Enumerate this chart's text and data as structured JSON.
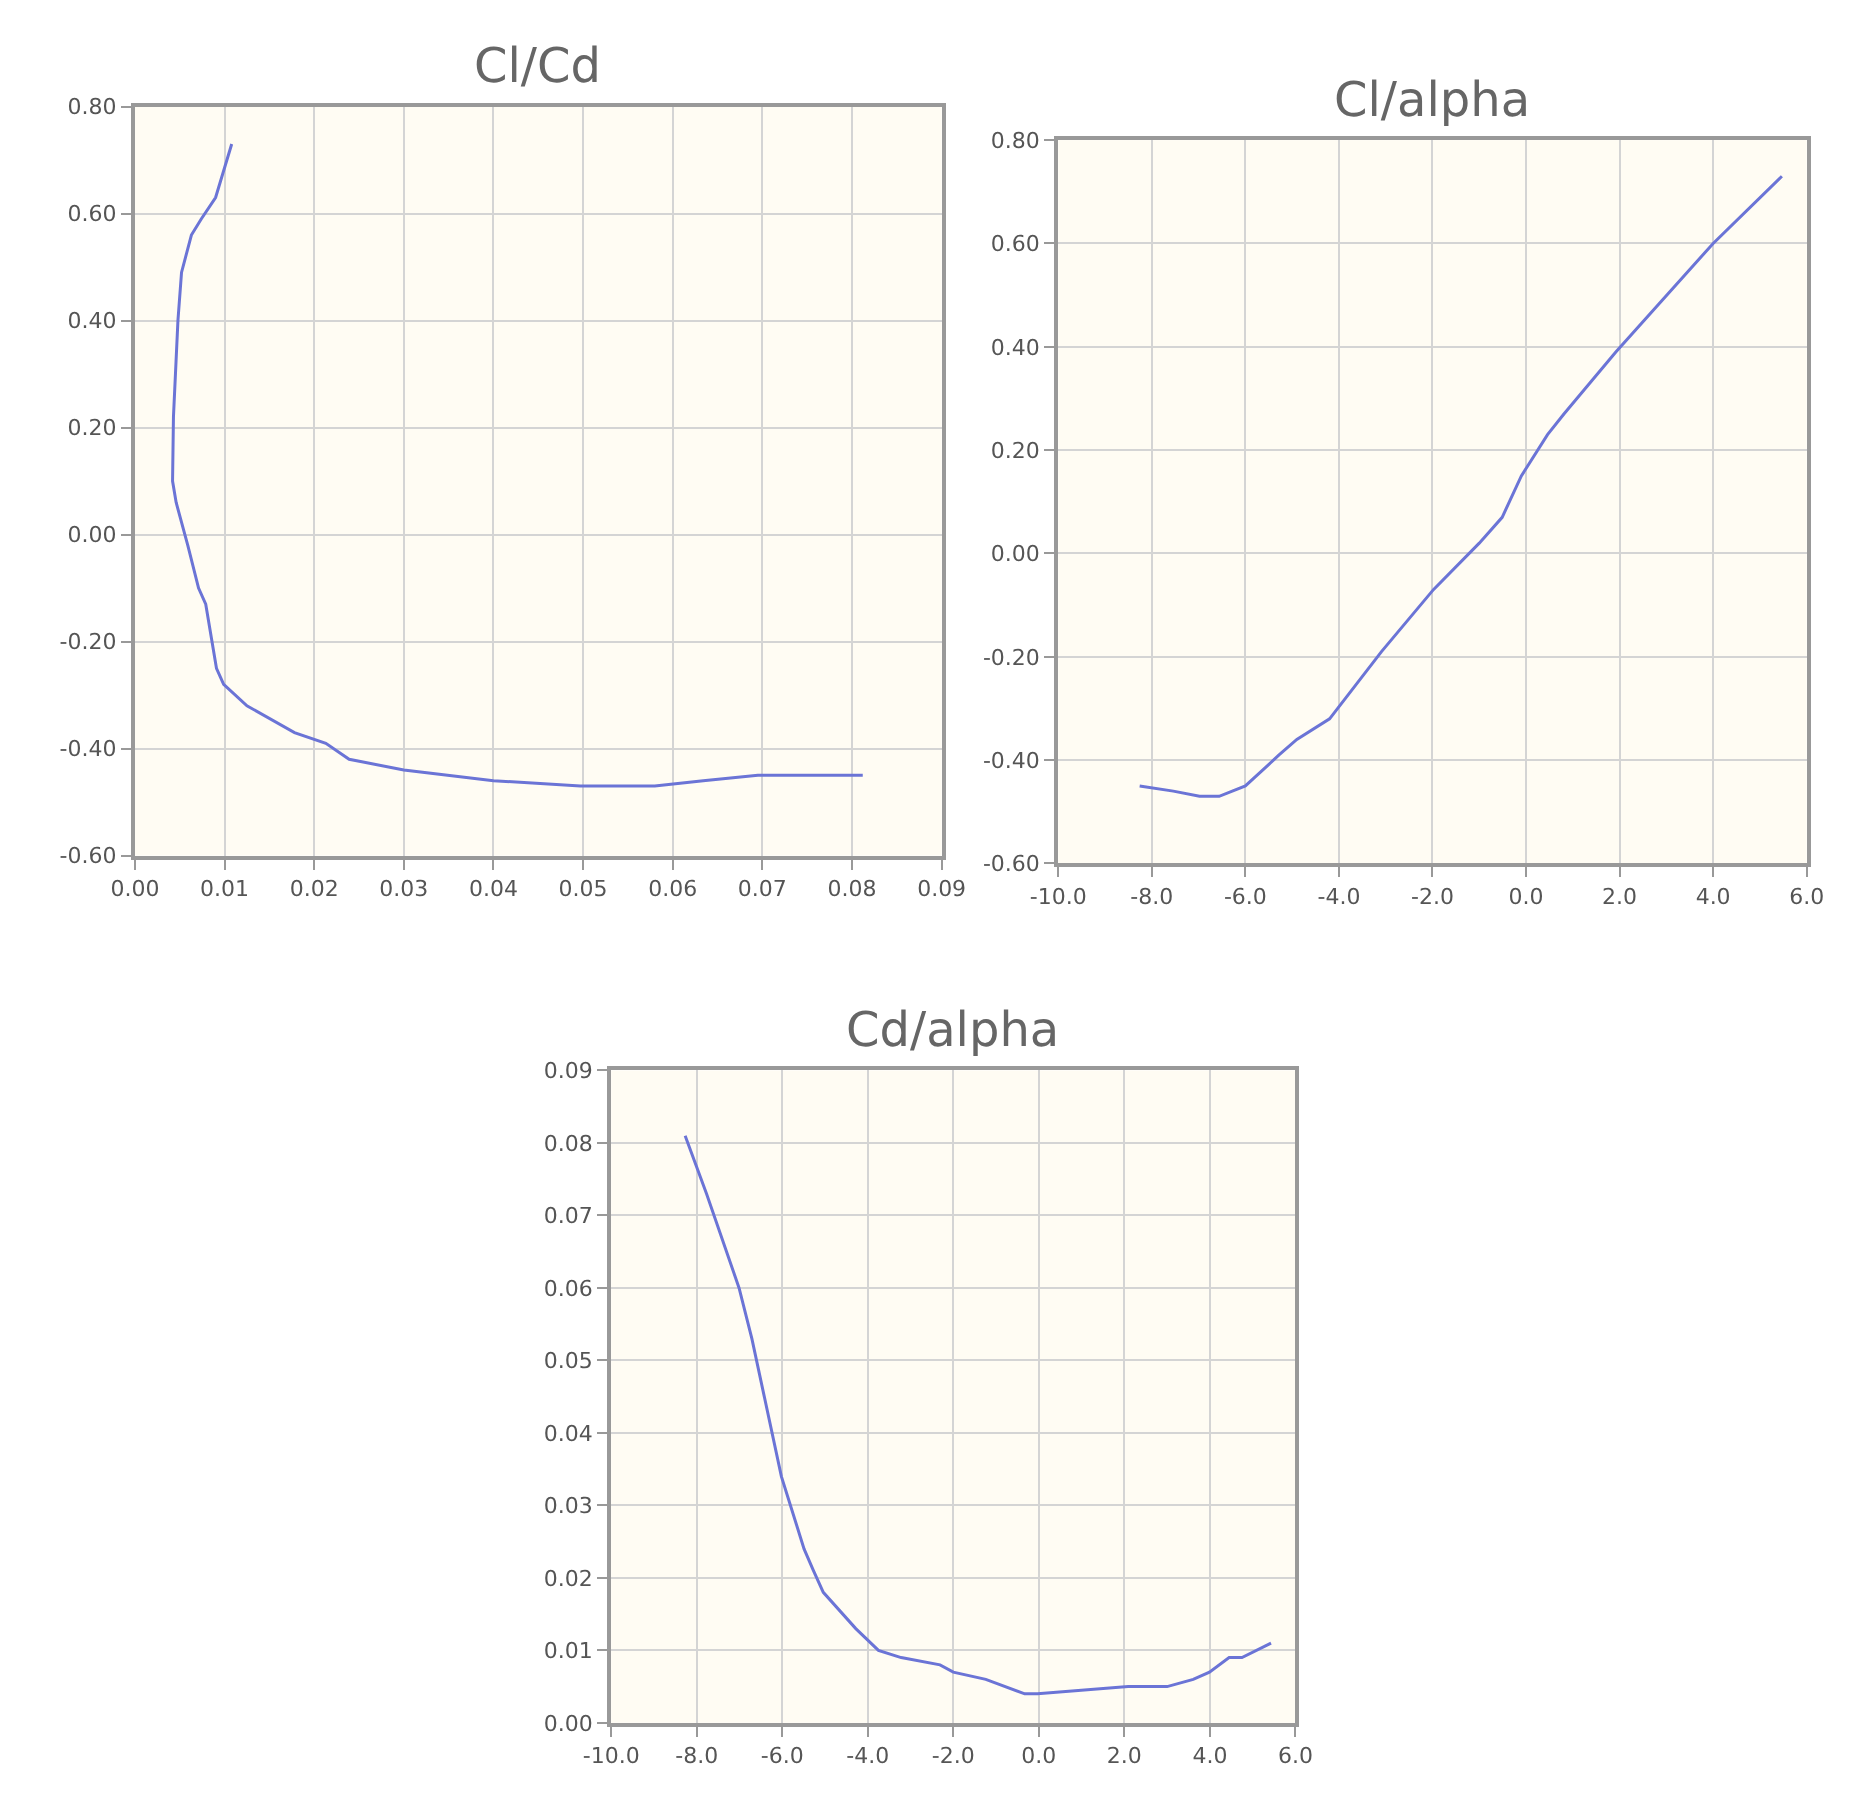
{
  "chart_data": [
    {
      "type": "line",
      "title": "Cl/Cd",
      "grid": true,
      "xlim": [
        0,
        0.09
      ],
      "ylim": [
        -0.6,
        0.8
      ],
      "xticks": [
        {
          "value": 0,
          "label": "0.00"
        },
        {
          "value": 0.01,
          "label": "0.01"
        },
        {
          "value": 0.02,
          "label": "0.02"
        },
        {
          "value": 0.03,
          "label": "0.03"
        },
        {
          "value": 0.04,
          "label": "0.04"
        },
        {
          "value": 0.05,
          "label": "0.05"
        },
        {
          "value": 0.06,
          "label": "0.06"
        },
        {
          "value": 0.07,
          "label": "0.07"
        },
        {
          "value": 0.08,
          "label": "0.08"
        },
        {
          "value": 0.09,
          "label": "0.09"
        }
      ],
      "yticks": [
        {
          "value": -0.6,
          "label": "-0.60"
        },
        {
          "value": -0.4,
          "label": "-0.40"
        },
        {
          "value": -0.2,
          "label": "-0.20"
        },
        {
          "value": 0,
          "label": "0.00"
        },
        {
          "value": 0.2,
          "label": "0.20"
        },
        {
          "value": 0.4,
          "label": "0.40"
        },
        {
          "value": 0.6,
          "label": "0.60"
        },
        {
          "value": 0.8,
          "label": "0.80"
        }
      ],
      "series": [
        {
          "color": "#6b74d6",
          "x": [
            0.0108,
            0.009,
            0.0074,
            0.0063,
            0.0052,
            0.0048,
            0.0043,
            0.0042,
            0.0046,
            0.0059,
            0.0071,
            0.0079,
            0.0091,
            0.0099,
            0.0125,
            0.0178,
            0.0213,
            0.0239,
            0.03,
            0.04,
            0.0497,
            0.058,
            0.0634,
            0.0695,
            0.0812
          ],
          "values": [
            0.73,
            0.63,
            0.59,
            0.56,
            0.49,
            0.4,
            0.22,
            0.1,
            0.06,
            -0.02,
            -0.1,
            -0.13,
            -0.25,
            -0.28,
            -0.32,
            -0.37,
            -0.39,
            -0.42,
            -0.44,
            -0.46,
            -0.47,
            -0.47,
            -0.46,
            -0.45,
            -0.45
          ]
        }
      ]
    },
    {
      "type": "line",
      "title": "Cl/alpha",
      "grid": true,
      "xlim": [
        -10,
        6
      ],
      "ylim": [
        -0.6,
        0.8
      ],
      "xticks": [
        {
          "value": -10,
          "label": "-10.0"
        },
        {
          "value": -8,
          "label": "-8.0"
        },
        {
          "value": -6,
          "label": "-6.0"
        },
        {
          "value": -4,
          "label": "-4.0"
        },
        {
          "value": -2,
          "label": "-2.0"
        },
        {
          "value": 0,
          "label": "0.0"
        },
        {
          "value": 2,
          "label": "2.0"
        },
        {
          "value": 4,
          "label": "4.0"
        },
        {
          "value": 6,
          "label": "6.0"
        }
      ],
      "yticks": [
        {
          "value": -0.6,
          "label": "-0.60"
        },
        {
          "value": -0.4,
          "label": "-0.40"
        },
        {
          "value": -0.2,
          "label": "-0.20"
        },
        {
          "value": 0,
          "label": "0.00"
        },
        {
          "value": 0.2,
          "label": "0.20"
        },
        {
          "value": 0.4,
          "label": "0.40"
        },
        {
          "value": 0.6,
          "label": "0.60"
        },
        {
          "value": 0.8,
          "label": "0.80"
        }
      ],
      "series": [
        {
          "color": "#6b74d6",
          "x": [
            -8.26,
            -7.54,
            -6.98,
            -6.56,
            -6.0,
            -5.52,
            -5.28,
            -4.9,
            -4.2,
            -3.09,
            -1.98,
            -1.0,
            -0.51,
            -0.1,
            0.46,
            0.81,
            1.92,
            4.0,
            5.47
          ],
          "values": [
            -0.45,
            -0.46,
            -0.47,
            -0.47,
            -0.45,
            -0.41,
            -0.39,
            -0.36,
            -0.32,
            -0.19,
            -0.07,
            0.02,
            0.07,
            0.15,
            0.23,
            0.27,
            0.39,
            0.6,
            0.73
          ]
        }
      ]
    },
    {
      "type": "line",
      "title": "Cd/alpha",
      "grid": true,
      "xlim": [
        -10,
        6
      ],
      "ylim": [
        0,
        0.09
      ],
      "xticks": [
        {
          "value": -10,
          "label": "-10.0"
        },
        {
          "value": -8,
          "label": "-8.0"
        },
        {
          "value": -6,
          "label": "-6.0"
        },
        {
          "value": -4,
          "label": "-4.0"
        },
        {
          "value": -2,
          "label": "-2.0"
        },
        {
          "value": 0,
          "label": "0.0"
        },
        {
          "value": 2,
          "label": "2.0"
        },
        {
          "value": 4,
          "label": "4.0"
        },
        {
          "value": 6,
          "label": "6.0"
        }
      ],
      "yticks": [
        {
          "value": 0,
          "label": "0.00"
        },
        {
          "value": 0.01,
          "label": "0.01"
        },
        {
          "value": 0.02,
          "label": "0.02"
        },
        {
          "value": 0.03,
          "label": "0.03"
        },
        {
          "value": 0.04,
          "label": "0.04"
        },
        {
          "value": 0.05,
          "label": "0.05"
        },
        {
          "value": 0.06,
          "label": "0.06"
        },
        {
          "value": 0.07,
          "label": "0.07"
        },
        {
          "value": 0.08,
          "label": "0.08"
        },
        {
          "value": 0.09,
          "label": "0.09"
        }
      ],
      "series": [
        {
          "color": "#6b74d6",
          "x": [
            -8.27,
            -7.77,
            -7.01,
            -6.71,
            -6.02,
            -5.49,
            -5.27,
            -5.04,
            -4.28,
            -3.75,
            -3.22,
            -2.31,
            -2.0,
            -1.24,
            -0.33,
            -0.03,
            2.09,
            3.0,
            3.61,
            3.99,
            4.45,
            4.75,
            5.43
          ],
          "values": [
            0.081,
            0.073,
            0.06,
            0.053,
            0.034,
            0.024,
            0.021,
            0.018,
            0.013,
            0.01,
            0.009,
            0.008,
            0.007,
            0.006,
            0.004,
            0.004,
            0.005,
            0.005,
            0.006,
            0.007,
            0.009,
            0.009,
            0.011
          ]
        }
      ]
    }
  ]
}
